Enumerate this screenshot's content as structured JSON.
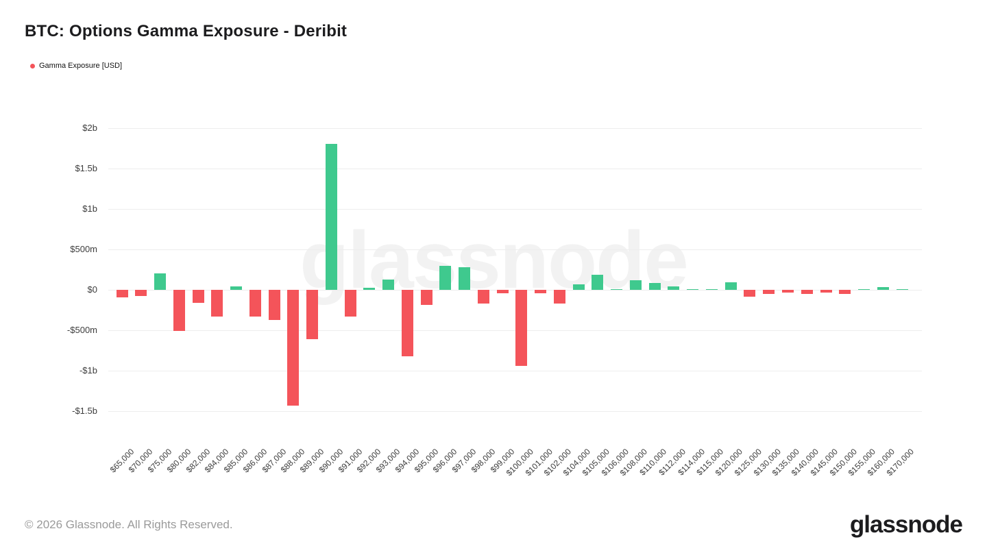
{
  "page": {
    "title": "BTC: Options Gamma Exposure - Deribit"
  },
  "legend": {
    "items": [
      {
        "label": "Gamma Exposure [USD]",
        "color": "#f4545a"
      }
    ]
  },
  "chart_data": {
    "type": "bar",
    "title": "BTC: Options Gamma Exposure - Deribit",
    "categories": [
      "$65,000",
      "$70,000",
      "$75,000",
      "$80,000",
      "$82,000",
      "$84,000",
      "$85,000",
      "$86,000",
      "$87,000",
      "$88,000",
      "$89,000",
      "$90,000",
      "$91,000",
      "$92,000",
      "$93,000",
      "$94,000",
      "$95,000",
      "$96,000",
      "$97,000",
      "$98,000",
      "$99,000",
      "$100,000",
      "$101,000",
      "$102,000",
      "$104,000",
      "$105,000",
      "$106,000",
      "$108,000",
      "$110,000",
      "$112,000",
      "$114,000",
      "$115,000",
      "$120,000",
      "$125,000",
      "$130,000",
      "$135,000",
      "$140,000",
      "$145,000",
      "$150,000",
      "$155,000",
      "$160,000",
      "$170,000"
    ],
    "series": [
      {
        "name": "Gamma Exposure [USD]",
        "values_usd_millions": [
          -90,
          -75,
          200,
          -510,
          -165,
          -330,
          40,
          -330,
          -370,
          -1430,
          -610,
          1805,
          -330,
          25,
          125,
          -820,
          -190,
          295,
          280,
          -170,
          -45,
          -940,
          -40,
          -170,
          65,
          185,
          8,
          120,
          85,
          40,
          4,
          6,
          95,
          -85,
          -55,
          -35,
          -50,
          -30,
          -55,
          8,
          30,
          2
        ]
      }
    ],
    "unit": "USD",
    "xlabel": "",
    "ylabel": "",
    "yticks": {
      "labels": [
        "$2b",
        "$1.5b",
        "$1b",
        "$500m",
        "$0",
        "-$500m",
        "-$1b",
        "-$1.5b"
      ],
      "values_usd_millions": [
        2000,
        1500,
        1000,
        500,
        0,
        -500,
        -1000,
        -1500
      ]
    },
    "ylim_usd_millions": [
      -1750,
      2150
    ],
    "grid": true,
    "legend_position": "top-left",
    "colors": {
      "positive": "#3fc98e",
      "negative": "#f4545a"
    },
    "watermark": "glassnode"
  },
  "footer": {
    "copyright": "© 2026 Glassnode. All Rights Reserved.",
    "brand": "glassnode"
  }
}
